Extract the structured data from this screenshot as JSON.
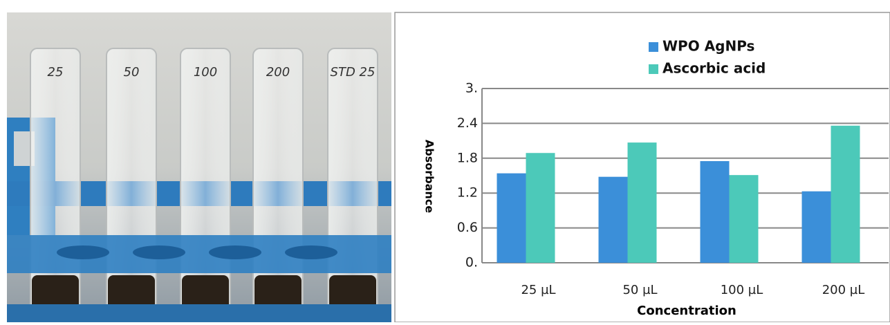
{
  "photo": {
    "tube_labels": [
      "25",
      "50",
      "100",
      "200",
      "STD 25"
    ]
  },
  "chart_data": {
    "type": "bar",
    "x_label": "Concentration",
    "y_label": "Absorbance",
    "categories": [
      "25 µL",
      "50 µL",
      "100 µL",
      "200 µL"
    ],
    "series": [
      {
        "name": "WPO AgNPs",
        "color": "#3b8fd9",
        "values": [
          1.54,
          1.48,
          1.75,
          1.23
        ]
      },
      {
        "name": "Ascorbic acid",
        "color": "#4cc9b9",
        "values": [
          1.89,
          2.07,
          1.51,
          2.36
        ]
      }
    ],
    "ylim": [
      0,
      3
    ],
    "yticks": [
      {
        "value": 0,
        "label": "0."
      },
      0.6,
      1.2,
      1.8,
      2.4,
      {
        "value": 3,
        "label": "3."
      }
    ],
    "grid": true
  }
}
